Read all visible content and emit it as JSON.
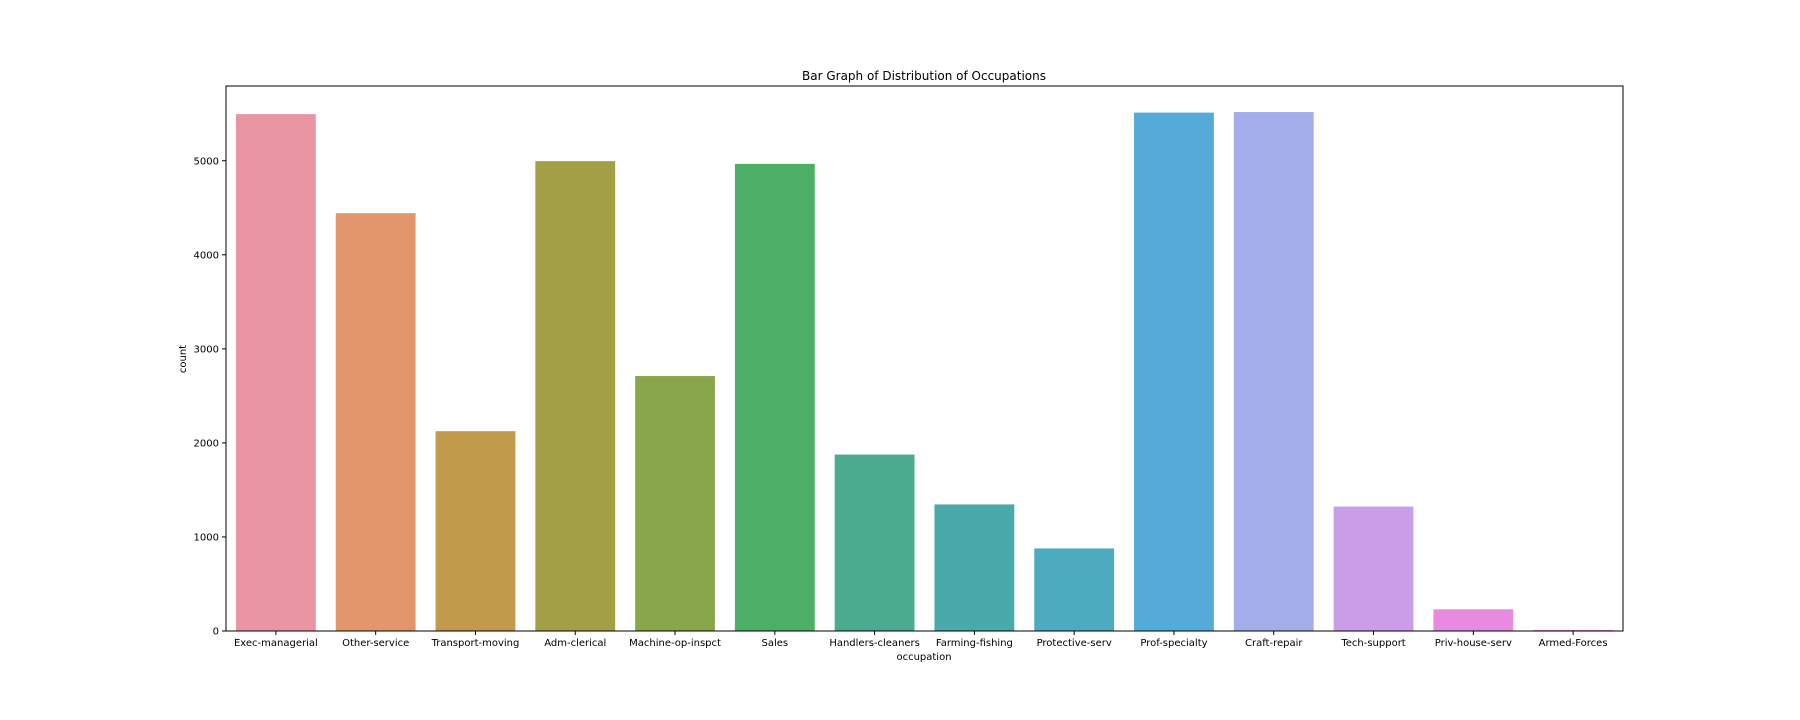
{
  "chart_data": {
    "type": "bar",
    "title": "Bar Graph of Distribution of Occupations",
    "xlabel": "occupation",
    "ylabel": "count",
    "categories": [
      "Exec-managerial",
      "Other-service",
      "Transport-moving",
      "Adm-clerical",
      "Machine-op-inspct",
      "Sales",
      "Handlers-cleaners",
      "Farming-fishing",
      "Protective-serv",
      "Prof-specialty",
      "Craft-repair",
      "Tech-support",
      "Priv-house-serv",
      "Armed-Forces"
    ],
    "values": [
      5496,
      4443,
      2125,
      4996,
      2711,
      4967,
      1876,
      1346,
      878,
      5512,
      5518,
      1323,
      231,
      11
    ],
    "colors": [
      "#ea96a2",
      "#e3956b",
      "#c29a4b",
      "#a39f47",
      "#89a74a",
      "#4bb066",
      "#4aab8f",
      "#49aaa9",
      "#4cabbf",
      "#54aad9",
      "#a1aeea",
      "#c99de8",
      "#e78be1",
      "#e888c4"
    ],
    "ylim": [
      0,
      5795
    ],
    "yticks": [
      0,
      1000,
      2000,
      3000,
      4000,
      5000
    ],
    "grid": false,
    "legend": "none"
  }
}
